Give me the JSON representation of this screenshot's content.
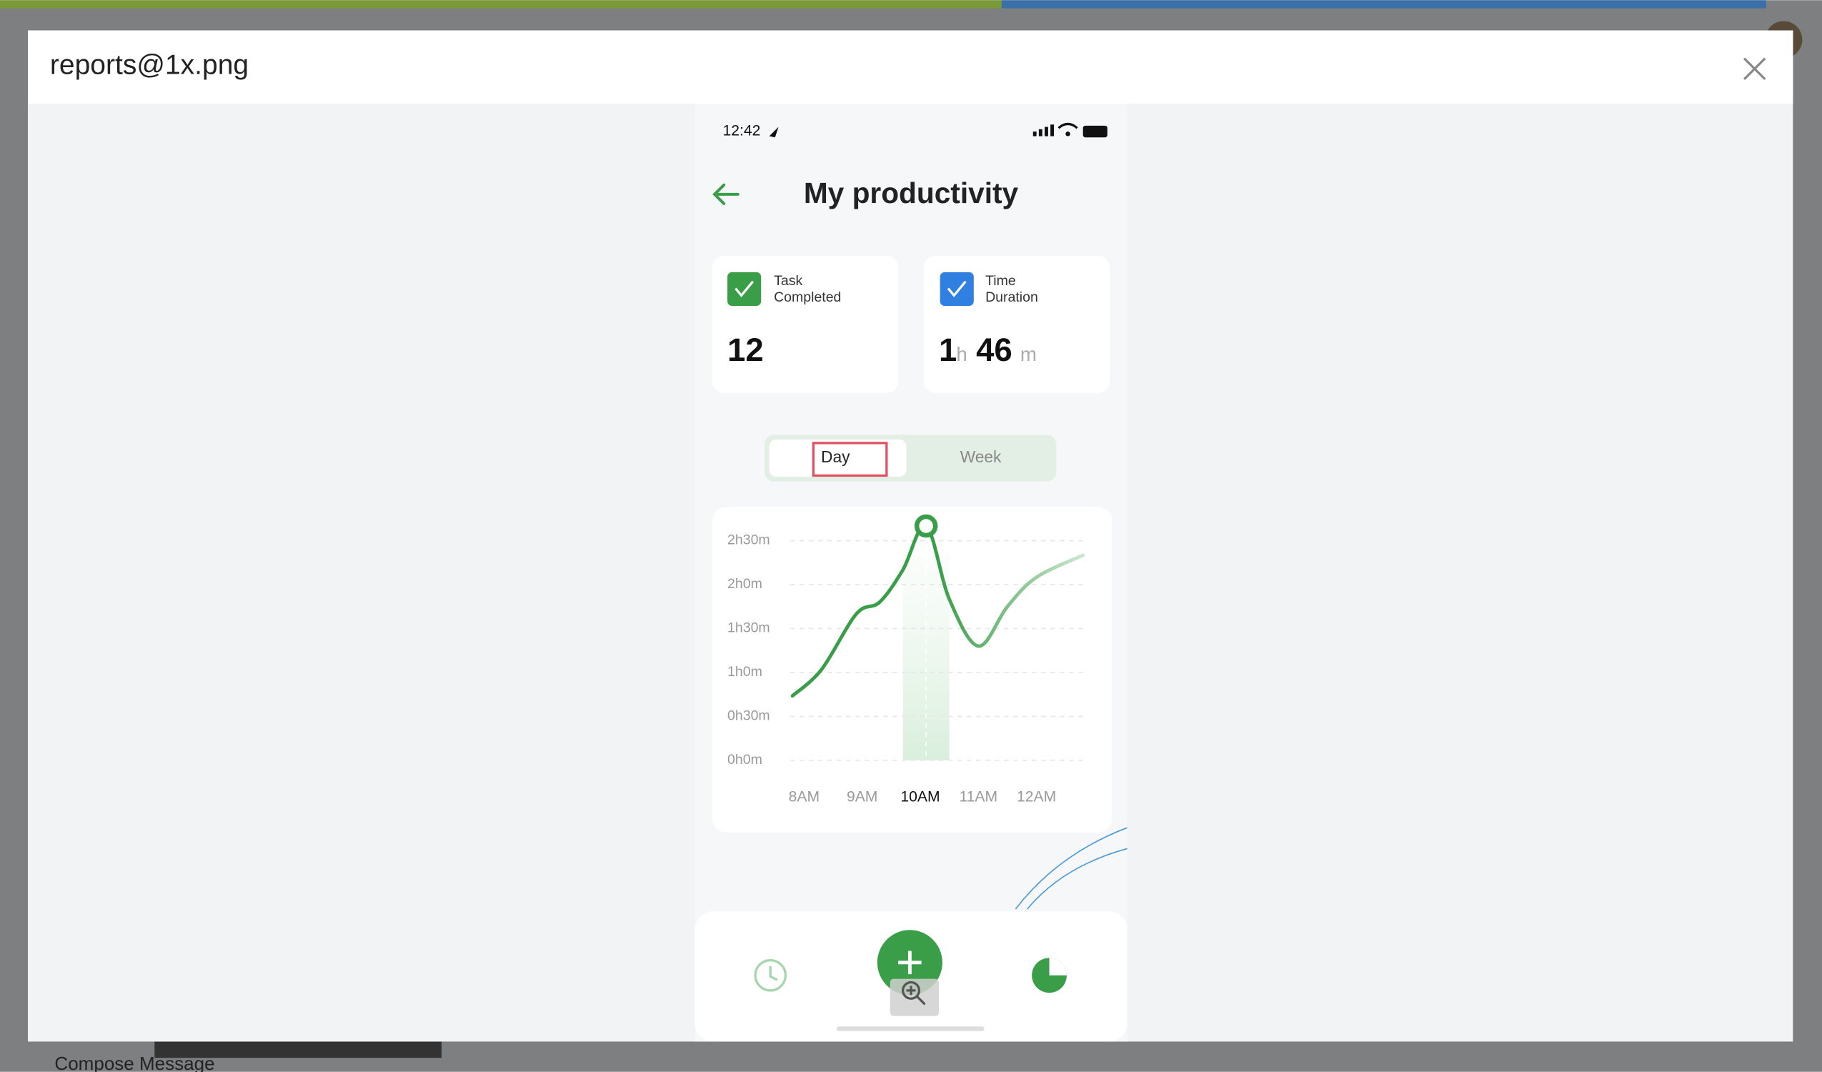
{
  "modal": {
    "title": "reports@1x.png"
  },
  "background": {
    "compose": "Compose Message"
  },
  "phone": {
    "time": "12:42",
    "title": "My productivity",
    "cards": [
      {
        "label_lines": [
          "Task",
          "Completed"
        ],
        "value": 12
      },
      {
        "label_lines": [
          "Time",
          "Duration"
        ],
        "hours": 1,
        "hours_unit": "h",
        "minutes": 46,
        "minutes_unit": "m"
      }
    ],
    "tabs": [
      "Day",
      "Week"
    ]
  },
  "chart_data": {
    "type": "line",
    "x": [
      7.8,
      8.3,
      8.9,
      9.3,
      9.7,
      10.1,
      10.5,
      11.0,
      11.5,
      12.0,
      12.8
    ],
    "series": [
      {
        "color": "#3a9d48",
        "values": [
          44,
          62,
          100,
          108,
          130,
          160,
          110,
          78,
          105,
          125,
          140
        ]
      }
    ],
    "highlight_index": 5,
    "xlim": [
      7.7,
      12.9
    ],
    "xticks": [
      {
        "value": 8,
        "label": "8AM"
      },
      {
        "value": 9,
        "label": "9AM"
      },
      {
        "value": 10,
        "label": "10AM"
      },
      {
        "value": 11,
        "label": "11AM"
      },
      {
        "value": 12,
        "label": "12AM"
      }
    ],
    "ylim": [
      0,
      150
    ],
    "yticks": [
      {
        "value": 0,
        "label": "0h0m"
      },
      {
        "value": 30,
        "label": "0h30m"
      },
      {
        "value": 60,
        "label": "1h0m"
      },
      {
        "value": 90,
        "label": "1h30m"
      },
      {
        "value": 120,
        "label": "2h0m"
      },
      {
        "value": 150,
        "label": "2h30m"
      }
    ],
    "grid": true
  }
}
